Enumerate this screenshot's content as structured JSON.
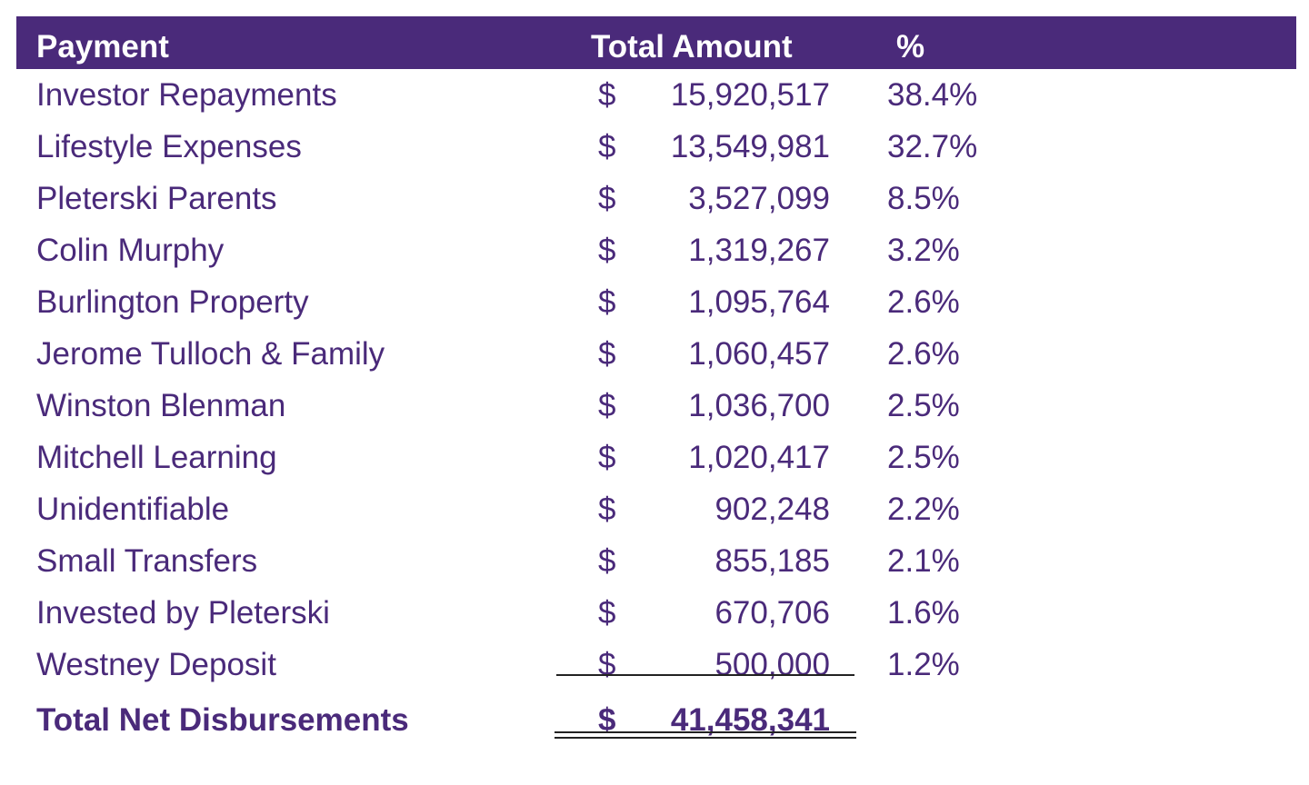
{
  "chart_data": {
    "type": "table",
    "columns": [
      "Payment",
      "Total Amount",
      "%"
    ],
    "header_color": "#4a2a7a",
    "text_color": "#4a2a7a",
    "currency_symbol": "$",
    "rows": [
      {
        "label": "Investor Repayments",
        "amount": "15,920,517",
        "pct": "38.4%"
      },
      {
        "label": "Lifestyle Expenses",
        "amount": "13,549,981",
        "pct": "32.7%"
      },
      {
        "label": "Pleterski Parents",
        "amount": "3,527,099",
        "pct": "8.5%"
      },
      {
        "label": "Colin Murphy",
        "amount": "1,319,267",
        "pct": "3.2%"
      },
      {
        "label": "Burlington Property",
        "amount": "1,095,764",
        "pct": "2.6%"
      },
      {
        "label": "Jerome Tulloch & Family",
        "amount": "1,060,457",
        "pct": "2.6%"
      },
      {
        "label": "Winston Blenman",
        "amount": "1,036,700",
        "pct": "2.5%"
      },
      {
        "label": "Mitchell Learning",
        "amount": "1,020,417",
        "pct": "2.5%"
      },
      {
        "label": "Unidentifiable",
        "amount": "902,248",
        "pct": "2.2%"
      },
      {
        "label": "Small Transfers",
        "amount": "855,185",
        "pct": "2.1%"
      },
      {
        "label": "Invested by Pleterski",
        "amount": "670,706",
        "pct": "1.6%"
      },
      {
        "label": "Westney Deposit",
        "amount": "500,000",
        "pct": "1.2%"
      }
    ],
    "total": {
      "label": "Total Net Disbursements",
      "amount": "41,458,341"
    }
  }
}
